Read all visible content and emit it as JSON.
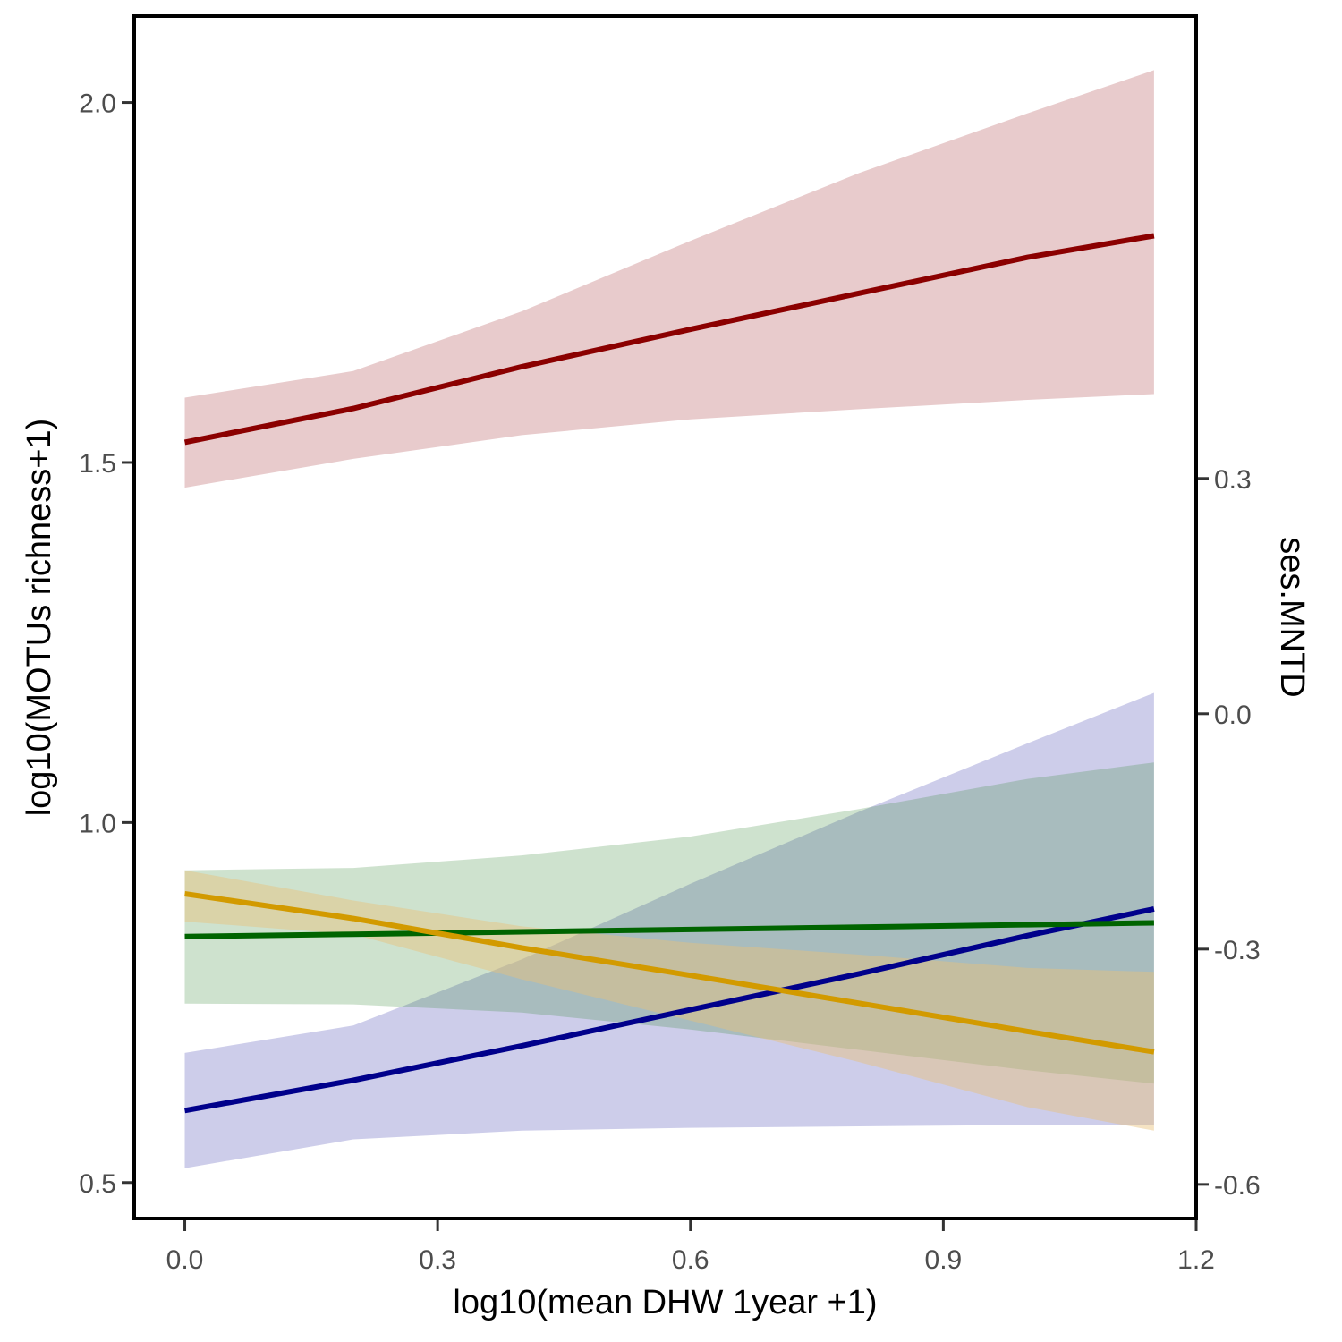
{
  "chart_data": {
    "type": "line",
    "title": "",
    "xlabel": "log10(mean DHW 1year +1)",
    "ylabel": "log10(MOTUs richness+1)",
    "y2label": "ses.MNTD",
    "xlim": [
      -0.06,
      1.2
    ],
    "ylim": [
      0.45,
      2.12
    ],
    "y2lim": [
      -0.6435,
      0.8894
    ],
    "x_ticks": [
      0.0,
      0.3,
      0.6,
      0.9,
      1.2
    ],
    "x_tick_labels": [
      "0.0",
      "0.3",
      "0.6",
      "0.9",
      "1.2"
    ],
    "y_ticks": [
      0.5,
      1.0,
      1.5,
      2.0
    ],
    "y_tick_labels": [
      "0.5",
      "1.0",
      "1.5",
      "2.0"
    ],
    "y2_ticks": [
      -0.6,
      -0.3,
      0.0,
      0.3
    ],
    "y2_tick_labels": [
      "-0.6",
      "-0.3",
      "0.0",
      "0.3"
    ],
    "grid": false,
    "legend": "none",
    "series": [
      {
        "axis": "left",
        "color": "#8b0000",
        "fill": "#e8cbcc",
        "fill_opacity": 1,
        "x": [
          0.0,
          0.2,
          0.4,
          0.6,
          0.8,
          1.0,
          1.15
        ],
        "fit": [
          1.528,
          1.575,
          1.633,
          1.685,
          1.735,
          1.785,
          1.815
        ],
        "lower": [
          1.465,
          1.505,
          1.538,
          1.56,
          1.574,
          1.587,
          1.595
        ],
        "upper": [
          1.59,
          1.627,
          1.71,
          1.808,
          1.902,
          1.985,
          2.045
        ]
      },
      {
        "axis": "left",
        "color": "#00008b",
        "fill": "#1a1aa0",
        "fill_opacity": 0.22,
        "x": [
          0.0,
          0.2,
          0.4,
          0.6,
          0.8,
          1.0,
          1.15
        ],
        "fit": [
          0.6,
          0.642,
          0.69,
          0.74,
          0.79,
          0.843,
          0.88
        ],
        "lower": [
          0.52,
          0.56,
          0.572,
          0.576,
          0.578,
          0.58,
          0.58
        ],
        "upper": [
          0.68,
          0.718,
          0.81,
          0.915,
          1.015,
          1.11,
          1.18
        ]
      },
      {
        "axis": "right",
        "color": "#006400",
        "fill": "#3d8c3d",
        "fill_opacity": 0.25,
        "x": [
          0.0,
          0.2,
          0.4,
          0.6,
          0.8,
          1.0,
          1.15
        ],
        "fit": [
          -0.284,
          -0.281,
          -0.278,
          -0.275,
          -0.272,
          -0.269,
          -0.2665
        ],
        "lower": [
          -0.3695,
          -0.3705,
          -0.381,
          -0.4025,
          -0.4285,
          -0.4545,
          -0.4715
        ],
        "upper": [
          -0.1995,
          -0.1965,
          -0.1805,
          -0.1565,
          -0.1215,
          -0.083,
          -0.062
        ]
      },
      {
        "axis": "right",
        "color": "#d29a00",
        "fill": "#e8c07a",
        "fill_opacity": 0.45,
        "x": [
          0.0,
          0.2,
          0.4,
          0.6,
          0.8,
          1.0,
          1.15
        ],
        "fit": [
          -0.2295,
          -0.261,
          -0.2985,
          -0.3335,
          -0.369,
          -0.405,
          -0.431
        ],
        "lower": [
          -0.265,
          -0.2812,
          -0.3385,
          -0.3912,
          -0.444,
          -0.5015,
          -0.5315
        ],
        "upper": [
          -0.1995,
          -0.238,
          -0.271,
          -0.292,
          -0.307,
          -0.324,
          -0.329
        ]
      }
    ]
  }
}
